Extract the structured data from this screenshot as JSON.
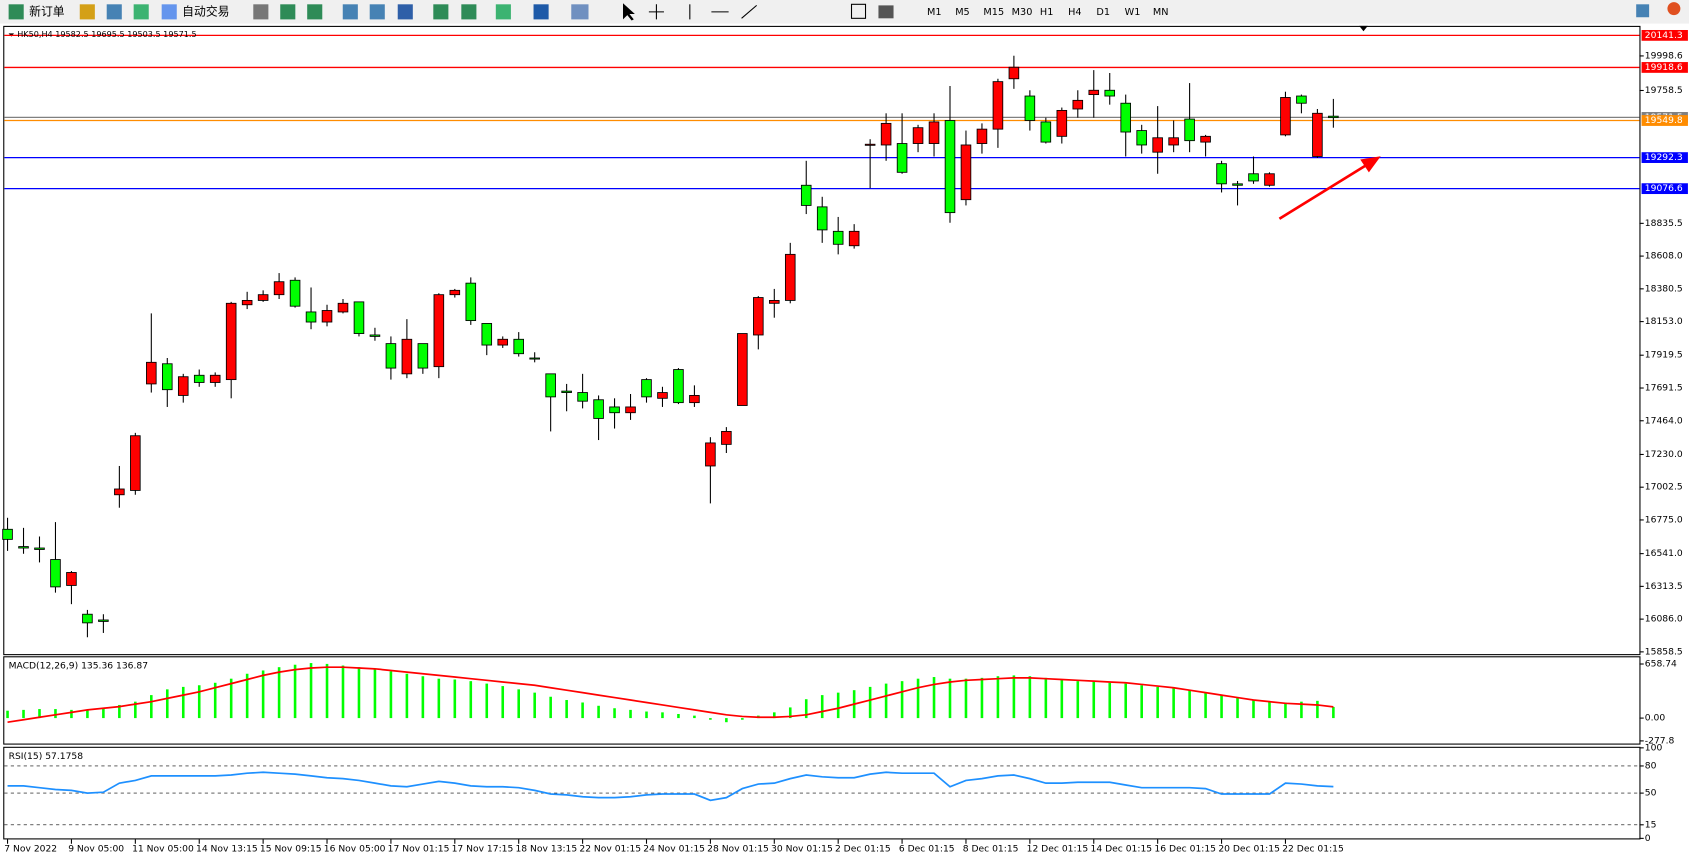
{
  "toolbar": {
    "new_order": "新订单",
    "auto_trading": "自动交易",
    "timeframes": [
      "M1",
      "M5",
      "M15",
      "M30",
      "H1",
      "H4",
      "D1",
      "W1",
      "MN"
    ]
  },
  "chart_data": [
    {
      "type": "candlestick",
      "title": "HK50,H4  19582.5 19695.5 19503.5 19571.5",
      "up_color": "#ff0000",
      "down_color": "#00ff00",
      "categories": [
        "7 Nov 2022",
        null,
        null,
        null,
        "9 Nov 05:00",
        null,
        null,
        null,
        "11 Nov 05:00",
        null,
        null,
        null,
        "14 Nov 13:15",
        null,
        null,
        null,
        "15 Nov 09:15",
        null,
        null,
        null,
        "16 Nov 05:00",
        null,
        null,
        null,
        "17 Nov 01:15",
        null,
        null,
        null,
        "17 Nov 17:15",
        null,
        null,
        null,
        "18 Nov 13:15",
        null,
        null,
        null,
        "22 Nov 01:15",
        null,
        null,
        null,
        "24 Nov 01:15",
        null,
        null,
        null,
        "28 Nov 01:15",
        null,
        null,
        null,
        "30 Nov 01:15",
        null,
        null,
        null,
        "2 Dec 01:15",
        null,
        null,
        null,
        "6 Dec 01:15",
        null,
        null,
        null,
        "8 Dec 01:15",
        null,
        null,
        null,
        "12 Dec 01:15",
        null,
        null,
        null,
        "14 Dec 01:15",
        null,
        null,
        null,
        "16 Dec 01:15",
        null,
        null,
        null,
        "20 Dec 01:15",
        null,
        null,
        null,
        "22 Dec 01:15",
        null,
        null,
        null
      ],
      "open": [
        16710,
        16590,
        16580,
        16500,
        16320,
        16120,
        16080,
        16950,
        16980,
        17720,
        17860,
        17640,
        17780,
        17730,
        17750,
        18270,
        18300,
        18340,
        18440,
        18220,
        18150,
        18220,
        18290,
        18060,
        18000,
        17790,
        18000,
        17840,
        18340,
        18420,
        18140,
        17990,
        18030,
        17900,
        17790,
        17670,
        17660,
        17610,
        17560,
        17520,
        17750,
        17620,
        17820,
        17590,
        17150,
        17300,
        17570,
        18060,
        18280,
        18300,
        19100,
        18950,
        18780,
        18680,
        19380,
        19380,
        19390,
        19390,
        19390,
        19550,
        19000,
        19390,
        19490,
        19840,
        19720,
        19540,
        19440,
        19630,
        19730,
        19760,
        19670,
        19480,
        19330,
        19380,
        19560,
        19400,
        19250,
        19110,
        19180,
        19100,
        19450,
        19720,
        19300,
        19580
      ],
      "high": [
        16790,
        16720,
        16660,
        16760,
        16420,
        16150,
        16120,
        17150,
        17380,
        18210,
        17900,
        17790,
        17820,
        17800,
        18290,
        18360,
        18370,
        18490,
        18460,
        18390,
        18270,
        18310,
        18290,
        18110,
        18050,
        18170,
        18000,
        18350,
        18380,
        18460,
        18140,
        18050,
        18080,
        17940,
        17790,
        17720,
        17790,
        17640,
        17620,
        17650,
        17760,
        17700,
        17830,
        17710,
        17350,
        17420,
        18070,
        18330,
        18380,
        18700,
        19270,
        19020,
        18880,
        18830,
        19420,
        19600,
        19600,
        19520,
        19600,
        19790,
        19480,
        19530,
        19840,
        20000,
        19760,
        19570,
        19640,
        19760,
        19900,
        19880,
        19730,
        19520,
        19650,
        19550,
        19810,
        19450,
        19270,
        19130,
        19300,
        19190,
        19750,
        19730,
        19630,
        19700
      ],
      "low": [
        16560,
        16540,
        16480,
        16270,
        16190,
        15960,
        15990,
        16860,
        16950,
        17660,
        17560,
        17590,
        17700,
        17700,
        17620,
        18240,
        18290,
        18310,
        18250,
        18100,
        18120,
        18210,
        18050,
        18020,
        17750,
        17760,
        17790,
        17760,
        18320,
        18130,
        17920,
        17970,
        17910,
        17870,
        17390,
        17530,
        17550,
        17330,
        17410,
        17470,
        17590,
        17560,
        17580,
        17560,
        16890,
        17240,
        17570,
        17960,
        18180,
        18280,
        18900,
        18700,
        18620,
        18660,
        19080,
        19270,
        19180,
        19330,
        19300,
        18840,
        18960,
        19320,
        19360,
        19770,
        19480,
        19390,
        19390,
        19570,
        19570,
        19660,
        19300,
        19320,
        19180,
        19330,
        19330,
        19300,
        19050,
        18960,
        19110,
        19090,
        19440,
        19600,
        19290,
        19500
      ],
      "close": [
        16640,
        16580,
        16570,
        16310,
        16410,
        16060,
        16070,
        16990,
        17360,
        17870,
        17680,
        17770,
        17730,
        17780,
        18280,
        18300,
        18340,
        18430,
        18260,
        18150,
        18230,
        18280,
        18070,
        18050,
        17830,
        18030,
        17830,
        18340,
        18370,
        18160,
        17990,
        18030,
        17930,
        17900,
        17630,
        17660,
        17600,
        17480,
        17520,
        17560,
        17630,
        17660,
        17590,
        17640,
        17310,
        17390,
        18070,
        18320,
        18300,
        18620,
        18960,
        18790,
        18690,
        18780,
        19385,
        19530,
        19190,
        19500,
        19540,
        18910,
        19380,
        19490,
        19820,
        19920,
        19550,
        19400,
        19620,
        19690,
        19760,
        19720,
        19470,
        19380,
        19430,
        19430,
        19410,
        19440,
        19110,
        19100,
        19130,
        19180,
        19710,
        19670,
        19600,
        19570
      ],
      "ylim": [
        15843,
        20185
      ],
      "yticks": [
        19998.6,
        19758.5,
        18835.5,
        {
          "value": 18608,
          "label": "18608.0"
        },
        18380.5,
        {
          "value": 18153,
          "label": "18153.0"
        },
        17919.5,
        17691.5,
        {
          "value": 17464,
          "label": "17464.0"
        },
        {
          "value": 17230,
          "label": "17230.0"
        },
        17002.5,
        {
          "value": 16775,
          "label": "16775.0"
        },
        {
          "value": 16541,
          "label": "16541.0"
        },
        16313.5,
        {
          "value": 16086,
          "label": "16086.0"
        },
        15858.5
      ],
      "levels": [
        {
          "value": 20141.3,
          "color": "#ff0000"
        },
        {
          "value": 19918.6,
          "color": "#ff0000"
        },
        {
          "value": 19571.5,
          "color": "#808080"
        },
        {
          "value": 19549.8,
          "color": "#ff8c00"
        },
        {
          "value": 19292.3,
          "color": "#0000ff"
        },
        {
          "value": 19076.6,
          "color": "#0000ff"
        }
      ]
    },
    {
      "type": "macd",
      "title": "MACD(12,26,9) 135.36 136.87",
      "histogram_color": "#00ff00",
      "signal_color": "#ff0000",
      "histogram": [
        90,
        100,
        110,
        110,
        100,
        100,
        120,
        160,
        200,
        280,
        350,
        380,
        400,
        430,
        480,
        540,
        580,
        620,
        650,
        670,
        660,
        640,
        620,
        600,
        570,
        540,
        510,
        480,
        470,
        450,
        420,
        390,
        350,
        310,
        260,
        220,
        190,
        150,
        120,
        100,
        80,
        70,
        50,
        30,
        -20,
        -50,
        -20,
        30,
        70,
        130,
        230,
        280,
        310,
        340,
        380,
        420,
        450,
        480,
        500,
        480,
        480,
        490,
        510,
        520,
        510,
        490,
        470,
        450,
        440,
        430,
        420,
        400,
        380,
        360,
        340,
        310,
        280,
        250,
        220,
        200,
        190,
        200,
        210,
        135.36
      ],
      "signal": [
        -50,
        -20,
        10,
        40,
        70,
        100,
        120,
        140,
        170,
        200,
        240,
        280,
        320,
        370,
        420,
        470,
        520,
        560,
        590,
        610,
        620,
        620,
        610,
        600,
        580,
        560,
        540,
        520,
        500,
        480,
        460,
        440,
        420,
        400,
        370,
        340,
        310,
        280,
        250,
        220,
        190,
        160,
        130,
        100,
        70,
        40,
        20,
        10,
        10,
        20,
        40,
        80,
        120,
        170,
        220,
        270,
        320,
        370,
        410,
        440,
        460,
        470,
        480,
        490,
        490,
        480,
        470,
        460,
        450,
        440,
        430,
        410,
        390,
        370,
        340,
        310,
        280,
        250,
        220,
        200,
        180,
        170,
        160,
        136.87
      ],
      "ylim": [
        -310,
        740
      ],
      "yticks": [
        658.74,
        {
          "value": 0,
          "label": "0.00"
        },
        -277.8
      ]
    },
    {
      "type": "line",
      "title": "RSI(15) 57.1758",
      "color": "#1e90ff",
      "values": [
        58,
        58,
        56,
        54,
        53,
        50,
        51,
        61,
        64,
        69,
        69,
        69,
        69,
        69,
        70,
        72,
        73,
        72,
        71,
        69,
        67,
        66,
        64,
        61,
        58,
        57,
        60,
        63,
        61,
        58,
        57,
        57,
        56,
        53,
        49,
        48,
        46,
        45,
        45,
        46,
        48,
        49,
        49,
        49,
        42,
        45,
        55,
        60,
        61,
        66,
        70,
        68,
        67,
        67,
        71,
        73,
        72,
        72,
        72,
        57,
        64,
        66,
        69,
        70,
        66,
        61,
        61,
        62,
        62,
        62,
        59,
        56,
        56,
        56,
        56,
        55,
        49,
        49,
        49,
        49,
        61,
        60,
        58,
        57.1758
      ],
      "ylim": [
        0,
        100
      ],
      "yticks": [
        100,
        80,
        50,
        15,
        0
      ]
    }
  ]
}
